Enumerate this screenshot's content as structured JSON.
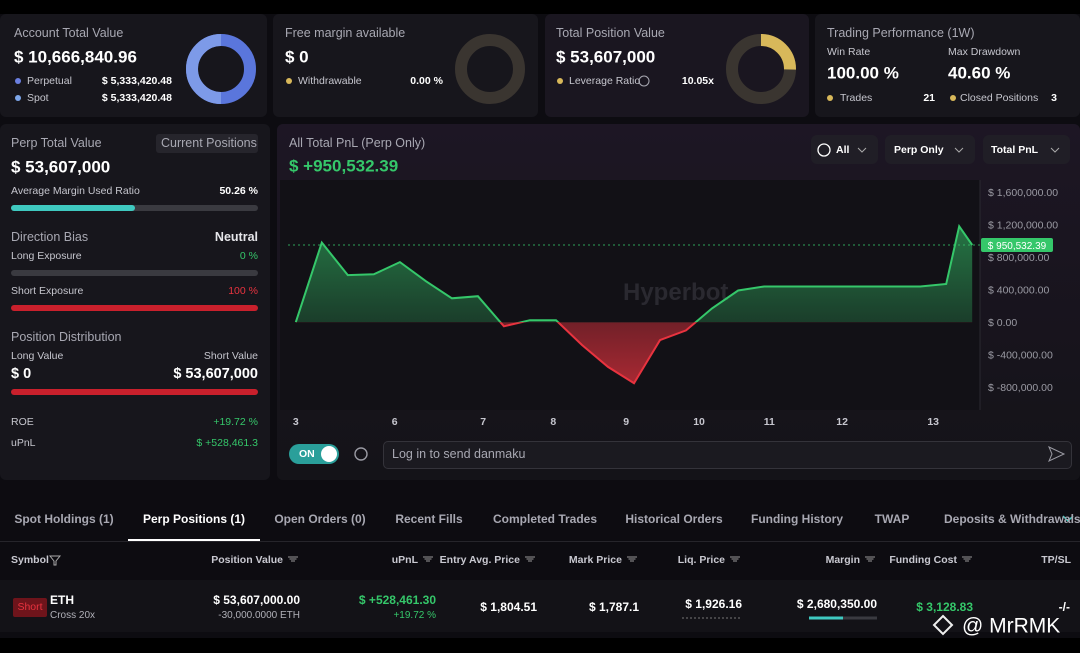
{
  "cards": [
    {
      "title": "Account Total Value",
      "value": "$ 10,666,840.96",
      "rows": [
        {
          "label": "Perpetual",
          "value": "$ 5,333,420.48"
        },
        {
          "label": "Spot",
          "value": "$ 5,333,420.48"
        }
      ]
    },
    {
      "title": "Free margin available",
      "value": "$ 0",
      "rows": [
        {
          "label": "Withdrawable",
          "value": "0.00 %"
        }
      ]
    },
    {
      "title": "Total Position Value",
      "value": "$ 53,607,000",
      "rows": [
        {
          "label": "Leverage Ratio",
          "value": "10.05x"
        }
      ]
    }
  ],
  "performance": {
    "title": "Trading Performance (1W)",
    "win_rate_label": "Win Rate",
    "win_rate": "100.00 %",
    "drawdown_label": "Max Drawdown",
    "drawdown": "40.60 %",
    "trades_label": "Trades",
    "trades": "21",
    "closed_label": "Closed Positions",
    "closed": "3"
  },
  "perp": {
    "title": "Perp Total Value",
    "button": "Current Positions",
    "value": "$ 53,607,000",
    "margin_label": "Average Margin Used Ratio",
    "margin": "50.26 %",
    "bias_label": "Direction Bias",
    "bias": "Neutral",
    "long_label": "Long Exposure",
    "long": "0 %",
    "short_label": "Short Exposure",
    "short": "100 %",
    "dist_label": "Position Distribution",
    "long_value_label": "Long Value",
    "short_value_label": "Short Value",
    "long_value": "$ 0",
    "short_value": "$ 53,607,000",
    "roe_label": "ROE",
    "roe": "+19.72 %",
    "upnl_label": "uPnL",
    "upnl": "$ +528,461.3"
  },
  "pnl": {
    "title": "All Total PnL (Perp Only)",
    "value": "$ +950,532.39",
    "filters": [
      "All",
      "Perp Only",
      "Total PnL"
    ],
    "watermark": "Hyperbot",
    "toggle": "ON",
    "input_placeholder": "Log in to send danmaku",
    "chart": {
      "type": "line",
      "color": "#35c76a",
      "negative_color": "#e8333f",
      "grid": false,
      "x": [
        0,
        1,
        2,
        3,
        4,
        5,
        6,
        7,
        8,
        9,
        10,
        11,
        12,
        13,
        14,
        15,
        16,
        17,
        18,
        19,
        20,
        21,
        22,
        23,
        24,
        25,
        25.5,
        26
      ],
      "values": [
        0,
        980000,
        580000,
        590000,
        740000,
        505000,
        295000,
        320000,
        -50000,
        25000,
        25000,
        -280000,
        -550000,
        -750000,
        -220000,
        -100000,
        170000,
        390000,
        440000,
        440000,
        440000,
        440000,
        440000,
        440000,
        440000,
        470000,
        1180000,
        950532.39
      ],
      "xlim": [
        -0.3,
        26.3
      ],
      "xticks": [
        {
          "value": 0,
          "label": "3"
        },
        {
          "value": 3.8,
          "label": "6"
        },
        {
          "value": 7.2,
          "label": "7"
        },
        {
          "value": 9.9,
          "label": "8"
        },
        {
          "value": 12.7,
          "label": "9"
        },
        {
          "value": 15.5,
          "label": "10"
        },
        {
          "value": 18.2,
          "label": "11"
        },
        {
          "value": 21,
          "label": "12"
        },
        {
          "value": 24.5,
          "label": "13"
        }
      ],
      "ylim": [
        -1080000,
        1750000
      ],
      "yticks": [
        {
          "value": 1600000,
          "label": "$ 1,600,000.00"
        },
        {
          "value": 1200000,
          "label": "$ 1,200,000.00"
        },
        {
          "value": 800000,
          "label": "$ 800,000.00"
        },
        {
          "value": 400000,
          "label": "$ 400,000.00"
        },
        {
          "value": 0,
          "label": "$ 0.00"
        },
        {
          "value": -400000,
          "label": "$ -400,000.00"
        },
        {
          "value": -800000,
          "label": "$ -800,000.00"
        }
      ],
      "marker": {
        "value": 950532.39,
        "label": "$ 950,532.39"
      }
    }
  },
  "tabs": [
    "Spot Holdings (1)",
    "Perp Positions (1)",
    "Open Orders (0)",
    "Recent Fills",
    "Completed Trades",
    "Historical Orders",
    "Funding History",
    "TWAP",
    "Deposits & Withdrawals"
  ],
  "active_tab": 1,
  "table": {
    "headers": [
      "Symbol",
      "Position Value",
      "uPnL",
      "Entry Avg. Price",
      "Mark Price",
      "Liq. Price",
      "Margin",
      "Funding Cost",
      "TP/SL"
    ],
    "rows": [
      {
        "side": "Short",
        "symbol": "ETH",
        "margin_mode": "Cross 20x",
        "position_value": "$ 53,607,000.00",
        "size": "-30,000.0000 ETH",
        "upnl": "$ +528,461.30",
        "roe": "+19.72 %",
        "entry": "$ 1,804.51",
        "mark": "$ 1,787.1",
        "liq": "$ 1,926.16",
        "margin": "$ 2,680,350.00",
        "funding": "$ 3,128.83",
        "tpsl": "-/-"
      }
    ]
  },
  "footer_watermark": "@ MrRMK"
}
